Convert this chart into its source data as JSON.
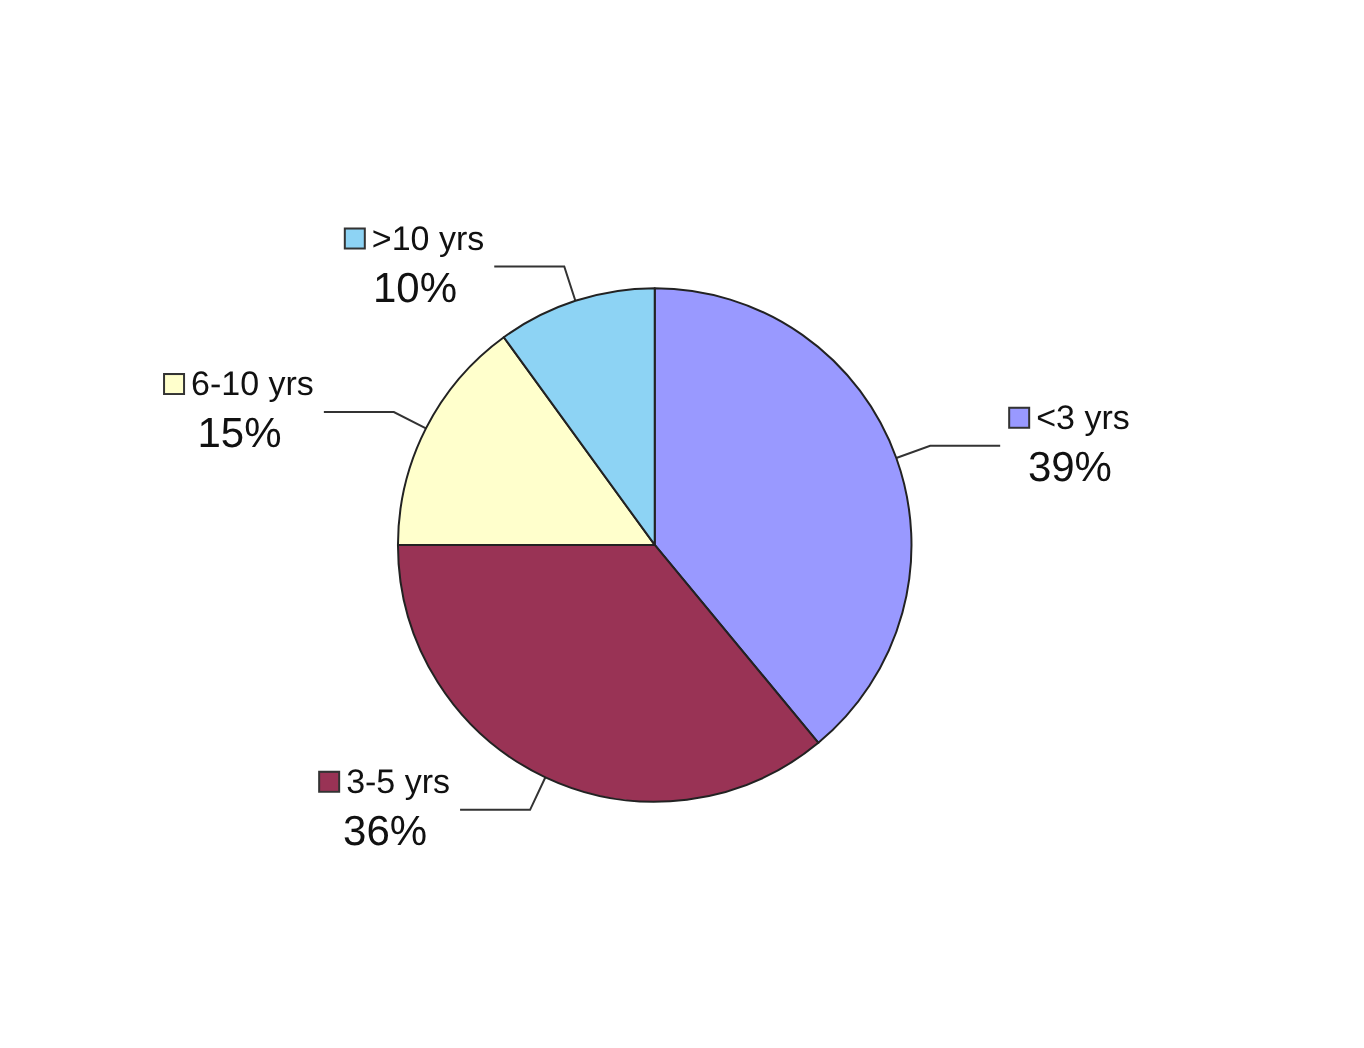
{
  "chart_data": {
    "type": "pie",
    "categories": [
      "<3 yrs",
      "3-5 yrs",
      "6-10 yrs",
      ">10 yrs"
    ],
    "values": [
      39,
      36,
      15,
      10
    ],
    "value_labels": [
      "39%",
      "36%",
      "15%",
      "10%"
    ],
    "colors": [
      "#9999ff",
      "#993355",
      "#ffffcc",
      "#8dd3f4"
    ],
    "legend": "top"
  }
}
